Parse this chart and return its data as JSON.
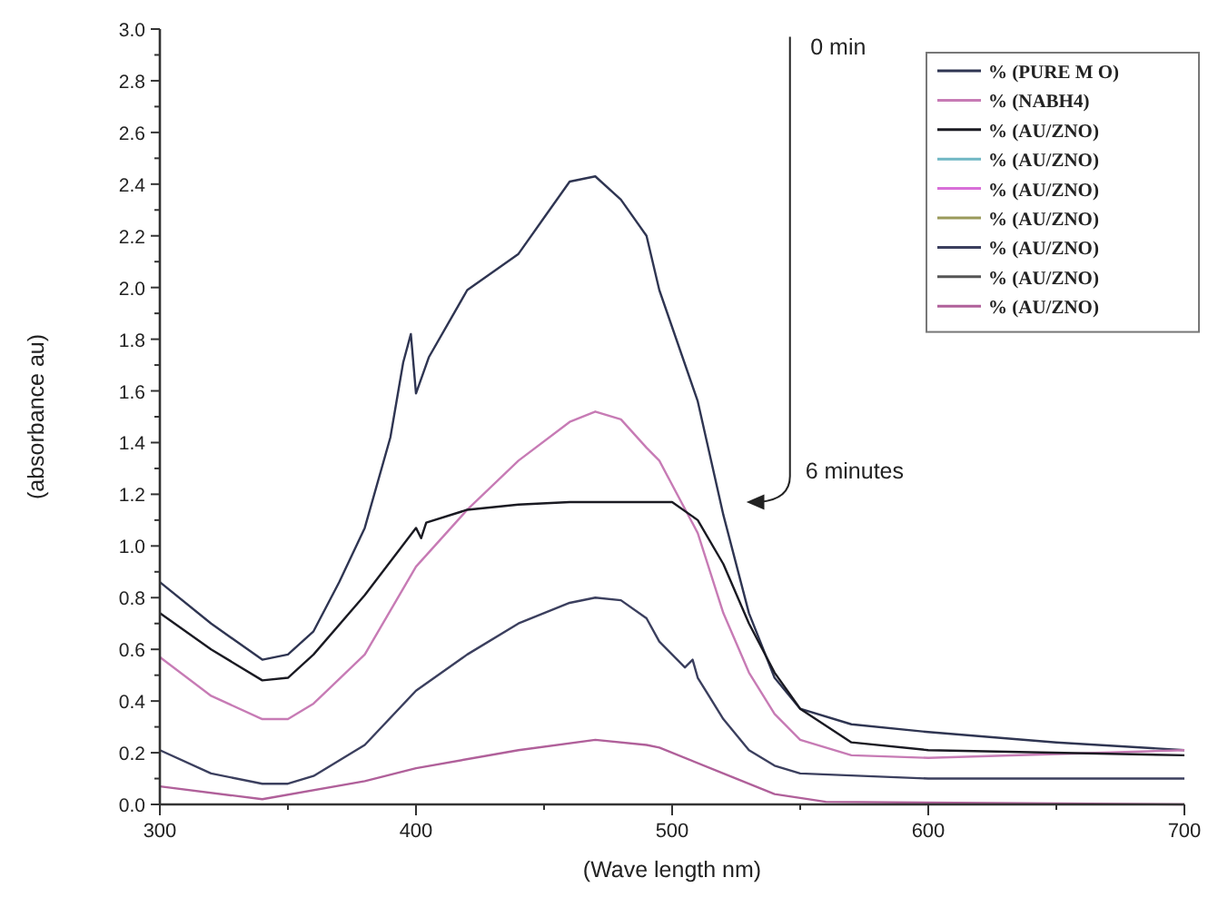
{
  "chart_data": {
    "type": "line",
    "xlabel": "(Wave length nm)",
    "ylabel": "(absorbance au)",
    "xlim": [
      300,
      700
    ],
    "xticks": [
      300,
      {
        "value": 350,
        "label": null
      },
      400,
      {
        "value": 450,
        "label": null
      },
      500,
      {
        "value": 550,
        "label": null
      },
      600,
      {
        "value": 650,
        "label": null
      },
      700
    ],
    "ylim": [
      0,
      3
    ],
    "yticks": [
      {
        "value": 0,
        "label": "0.0"
      },
      {
        "value": 0.2,
        "label": "0.2"
      },
      {
        "value": 0.4,
        "label": "0.4"
      },
      {
        "value": 0.6,
        "label": "0.6"
      },
      {
        "value": 0.8,
        "label": "0.8"
      },
      {
        "value": 1,
        "label": "1.0"
      },
      {
        "value": 1.2,
        "label": "1.2"
      },
      {
        "value": 1.4,
        "label": "1.4"
      },
      {
        "value": 1.6,
        "label": "1.6"
      },
      {
        "value": 1.8,
        "label": "1.8"
      },
      {
        "value": 2,
        "label": "2.0"
      },
      {
        "value": 2.2,
        "label": "2.2"
      },
      {
        "value": 2.4,
        "label": "2.4"
      },
      {
        "value": 2.6,
        "label": "2.6"
      },
      {
        "value": 2.8,
        "label": "2.8"
      },
      {
        "value": 3,
        "label": "3.0"
      }
    ],
    "grid": false,
    "legend": "top right",
    "marker": "none",
    "line_style": "solid",
    "annotations": [
      "0 min",
      "6 minutes"
    ],
    "series": [
      {
        "name": "% (PURE M O)",
        "color": "#2f3552",
        "x": [
          300,
          320,
          340,
          350,
          360,
          370,
          380,
          390,
          395,
          398,
          400,
          405,
          420,
          440,
          450,
          460,
          470,
          480,
          490,
          495,
          510,
          520,
          530,
          540,
          550,
          570,
          600,
          650,
          700
        ],
        "values": [
          0.86,
          0.7,
          0.56,
          0.58,
          0.67,
          0.86,
          1.07,
          1.42,
          1.71,
          1.82,
          1.59,
          1.73,
          1.99,
          2.13,
          2.27,
          2.41,
          2.43,
          2.34,
          2.2,
          1.99,
          1.56,
          1.12,
          0.74,
          0.49,
          0.37,
          0.31,
          0.28,
          0.24,
          0.21
        ]
      },
      {
        "name": "% (NABH4)",
        "color": "#c77bb5",
        "x": [
          300,
          320,
          340,
          350,
          360,
          380,
          400,
          420,
          440,
          460,
          470,
          480,
          490,
          495,
          510,
          520,
          530,
          540,
          550,
          570,
          600,
          700
        ],
        "values": [
          0.57,
          0.42,
          0.33,
          0.33,
          0.39,
          0.58,
          0.92,
          1.14,
          1.33,
          1.48,
          1.52,
          1.49,
          1.38,
          1.33,
          1.05,
          0.74,
          0.51,
          0.35,
          0.25,
          0.19,
          0.18,
          0.21
        ]
      },
      {
        "name": "% (AU/ZNO)",
        "color": "#1a1a22",
        "x": [
          300,
          320,
          340,
          350,
          360,
          380,
          400,
          402,
          404,
          420,
          440,
          460,
          480,
          500,
          510,
          520,
          530,
          540,
          550,
          570,
          600,
          700
        ],
        "values": [
          0.74,
          0.6,
          0.48,
          0.49,
          0.58,
          0.81,
          1.07,
          1.03,
          1.09,
          1.14,
          1.16,
          1.17,
          1.17,
          1.17,
          1.1,
          0.93,
          0.7,
          0.51,
          0.37,
          0.24,
          0.21,
          0.19
        ]
      },
      {
        "name": "% (AU/ZNO)",
        "color": "#6fb7c4"
      },
      {
        "name": "% (AU/ZNO)",
        "color": "#d86fd8"
      },
      {
        "name": "% (AU/ZNO)",
        "color": "#9a9a5a"
      },
      {
        "name": "% (AU/ZNO)",
        "color": "#3b3f5e",
        "x": [
          300,
          320,
          340,
          350,
          360,
          380,
          400,
          420,
          440,
          460,
          470,
          480,
          490,
          495,
          505,
          508,
          510,
          520,
          530,
          540,
          550,
          600,
          700
        ],
        "values": [
          0.21,
          0.12,
          0.08,
          0.08,
          0.11,
          0.23,
          0.44,
          0.58,
          0.7,
          0.78,
          0.8,
          0.79,
          0.72,
          0.63,
          0.53,
          0.56,
          0.49,
          0.33,
          0.21,
          0.15,
          0.12,
          0.1,
          0.1
        ]
      },
      {
        "name": "% (AU/ZNO)",
        "color": "#555555"
      },
      {
        "name": "% (AU/ZNO)",
        "color": "#b0609a",
        "x": [
          300,
          340,
          380,
          400,
          440,
          470,
          490,
          495,
          520,
          540,
          560,
          700
        ],
        "values": [
          0.07,
          0.02,
          0.09,
          0.14,
          0.21,
          0.25,
          0.23,
          0.22,
          0.12,
          0.04,
          0.01,
          0
        ]
      }
    ]
  }
}
